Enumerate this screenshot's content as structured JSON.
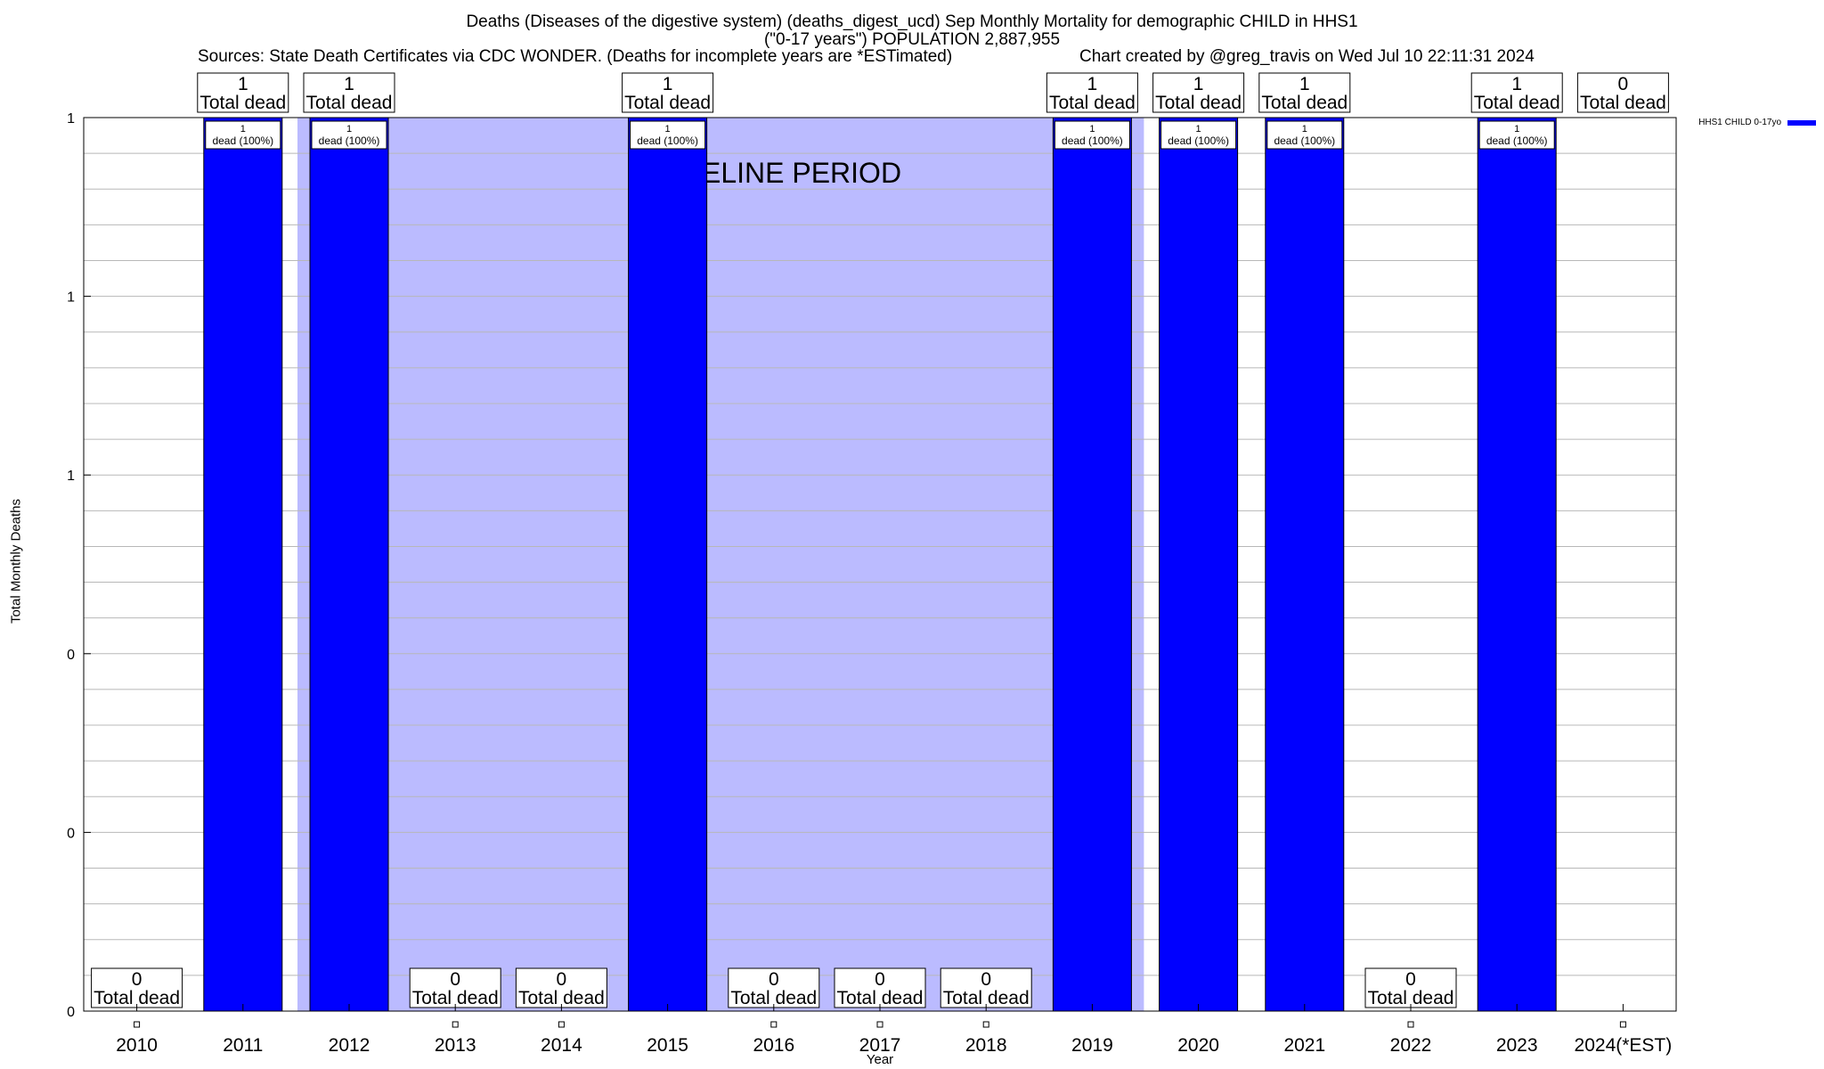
{
  "header": {
    "title": "Deaths (Diseases of the digestive system) (deaths_digest_ucd) Sep Monthly Mortality for demographic CHILD in HHS1",
    "subtitle": "(\"0-17 years\") POPULATION 2,887,955",
    "sources": "Sources: State Death Certificates via CDC WONDER. (Deaths for incomplete years are *ESTimated)",
    "credit": "Chart created by @greg_travis on Wed Jul 10 22:11:31 2024"
  },
  "chart_data": {
    "type": "bar",
    "xlabel": "Year",
    "ylabel": "Total Monthly Deaths",
    "ylim": [
      0,
      1
    ],
    "ytick_labels": [
      "0",
      "0",
      "0",
      "1",
      "1",
      "1"
    ],
    "categories": [
      "2010",
      "2011",
      "2012",
      "2013",
      "2014",
      "2015",
      "2016",
      "2017",
      "2018",
      "2019",
      "2020",
      "2021",
      "2022",
      "2023",
      "2024(*EST)"
    ],
    "series": [
      {
        "name": "HHS1 CHILD 0-17yo",
        "color": "#0000ff",
        "values": [
          0,
          1,
          1,
          0,
          0,
          1,
          0,
          0,
          0,
          1,
          1,
          1,
          0,
          1,
          0
        ]
      }
    ],
    "total_labels": [
      "0",
      "1",
      "1",
      "0",
      "0",
      "1",
      "0",
      "0",
      "0",
      "1",
      "1",
      "1",
      "0",
      "1",
      "0"
    ],
    "total_label_suffix": "Total dead",
    "bar_inner_label_count": "1",
    "bar_inner_label_text": "dead (100%)",
    "baseline_period": {
      "label": "BASELINE PERIOD",
      "start": "2012",
      "end": "2019",
      "color": "#bbbbff"
    },
    "legend": {
      "placement": "top-right"
    },
    "grid": true
  }
}
